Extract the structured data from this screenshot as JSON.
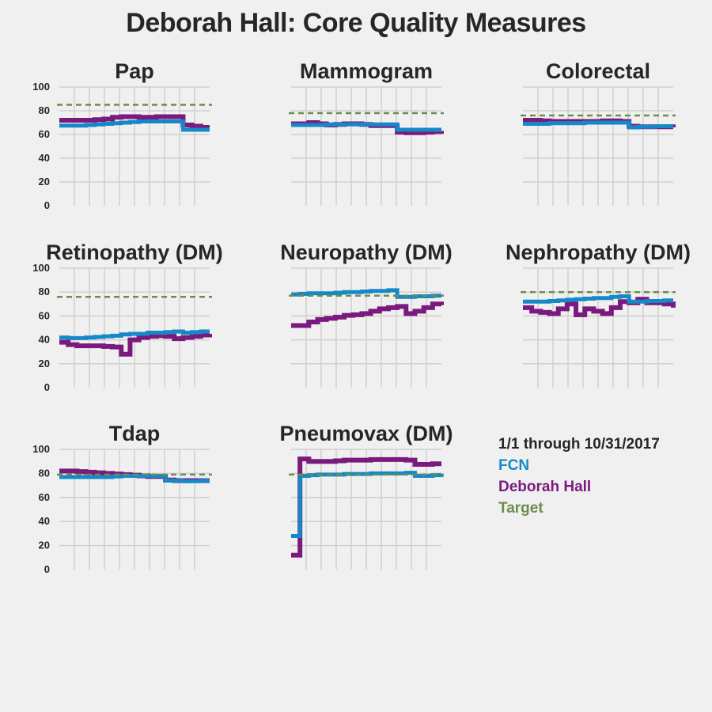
{
  "title": "Deborah Hall: Core Quality Measures",
  "legend": {
    "period": "1/1 through 10/31/2017",
    "items": [
      {
        "label": "FCN",
        "color": "#1589c8"
      },
      {
        "label": "Deborah Hall",
        "color": "#7a1a7e"
      },
      {
        "label": "Target",
        "color": "#6b8e4e"
      }
    ]
  },
  "chart_data": [
    {
      "type": "line",
      "title": "Pap",
      "ylim": [
        0,
        100
      ],
      "yticks": [
        "100",
        "80",
        "60",
        "40",
        "20",
        "0"
      ],
      "grid": true,
      "target": 85,
      "series": [
        {
          "name": "FCN",
          "values": [
            67.5,
            67.5,
            67.5,
            68,
            68.5,
            69,
            69.5,
            70,
            70.5,
            71,
            71,
            71,
            71,
            71,
            64,
            64,
            64,
            64
          ]
        },
        {
          "name": "Deborah Hall",
          "values": [
            72,
            72,
            72,
            72,
            72.5,
            73,
            74.5,
            75,
            75,
            74.5,
            74.5,
            75,
            75,
            75,
            68,
            67,
            66,
            66
          ]
        }
      ]
    },
    {
      "type": "line",
      "title": "Mammogram",
      "ylim": [
        0,
        100
      ],
      "yticks": [
        "100",
        "80",
        "60",
        "40",
        "20",
        "0"
      ],
      "grid": true,
      "target": 78,
      "series": [
        {
          "name": "FCN",
          "values": [
            68,
            68,
            68,
            68,
            68.5,
            68.5,
            68.5,
            68.5,
            68.5,
            68.5,
            68.5,
            68.5,
            64,
            64,
            64,
            64,
            64,
            64
          ]
        },
        {
          "name": "Deborah Hall",
          "values": [
            69,
            69,
            70,
            69,
            68,
            68.5,
            69,
            69,
            68.5,
            67.5,
            67.5,
            67.5,
            62,
            61.5,
            61.5,
            62,
            62.5,
            63
          ]
        }
      ]
    },
    {
      "type": "line",
      "title": "Colorectal",
      "ylim": [
        0,
        100
      ],
      "yticks": [
        "100",
        "80",
        "60",
        "40",
        "20",
        "0"
      ],
      "grid": true,
      "target": 76,
      "series": [
        {
          "name": "FCN",
          "values": [
            69,
            69,
            69,
            69.5,
            69.5,
            69.5,
            69.5,
            70,
            70,
            70,
            70,
            70,
            66,
            66.5,
            66.5,
            67,
            67,
            67
          ]
        },
        {
          "name": "Deborah Hall",
          "values": [
            72,
            72,
            71.5,
            71,
            71,
            71,
            71,
            71,
            71,
            71.5,
            71.5,
            71,
            67,
            66.5,
            66.5,
            66.5,
            66.5,
            66
          ]
        }
      ]
    },
    {
      "type": "line",
      "title": "Retinopathy (DM)",
      "ylim": [
        0,
        100
      ],
      "yticks": [
        "100",
        "80",
        "60",
        "40",
        "20",
        "0"
      ],
      "grid": true,
      "target": 76,
      "series": [
        {
          "name": "FCN",
          "values": [
            42,
            41.5,
            41.5,
            42,
            42.5,
            43,
            43.5,
            44.5,
            45,
            45,
            46,
            46,
            46.5,
            47,
            46,
            46.5,
            47,
            47
          ]
        },
        {
          "name": "Deborah Hall",
          "values": [
            38,
            36,
            35,
            35,
            35,
            34.5,
            34,
            28,
            40,
            42,
            43,
            43.5,
            43,
            41,
            42,
            43,
            44,
            45
          ]
        }
      ]
    },
    {
      "type": "line",
      "title": "Neuropathy (DM)",
      "ylim": [
        0,
        100
      ],
      "yticks": [
        "100",
        "80",
        "60",
        "40",
        "20",
        "0"
      ],
      "grid": true,
      "target": 77,
      "series": [
        {
          "name": "FCN",
          "values": [
            78,
            78.5,
            79,
            79,
            79,
            79.5,
            80,
            80,
            80.5,
            81,
            81,
            81.5,
            76,
            76,
            76.5,
            76.5,
            77,
            77
          ]
        },
        {
          "name": "Deborah Hall",
          "values": [
            52,
            52,
            55,
            57,
            58,
            59,
            60.5,
            61,
            62,
            64,
            66,
            67,
            68,
            62,
            64,
            67,
            70,
            69
          ]
        }
      ]
    },
    {
      "type": "line",
      "title": "Nephropathy (DM)",
      "ylim": [
        0,
        100
      ],
      "yticks": [
        "100",
        "80",
        "60",
        "40",
        "20",
        "0"
      ],
      "grid": true,
      "target": 80,
      "series": [
        {
          "name": "FCN",
          "values": [
            72,
            72,
            72,
            72.5,
            73,
            73.5,
            74,
            74.5,
            75,
            75,
            76,
            76.5,
            72,
            72,
            72.5,
            72.5,
            73,
            73
          ]
        },
        {
          "name": "Deborah Hall",
          "values": [
            67,
            64,
            63,
            62,
            66,
            70,
            61,
            66,
            64,
            62,
            67,
            72,
            71,
            74,
            71,
            71,
            70,
            67
          ]
        }
      ]
    },
    {
      "type": "line",
      "title": "Tdap",
      "ylim": [
        0,
        100
      ],
      "yticks": [
        "100",
        "80",
        "60",
        "40",
        "20",
        "0"
      ],
      "grid": true,
      "target": 79,
      "series": [
        {
          "name": "FCN",
          "values": [
            77,
            77,
            77,
            77,
            77,
            77,
            77.5,
            78,
            78,
            78,
            78,
            78,
            74,
            74,
            73.5,
            73.5,
            74,
            74
          ]
        },
        {
          "name": "Deborah Hall",
          "values": [
            82,
            82,
            81.5,
            81,
            80.5,
            80,
            79.5,
            79,
            78.5,
            78,
            77.5,
            77.5,
            74.5,
            74,
            74,
            74,
            74,
            74
          ]
        }
      ]
    },
    {
      "type": "line",
      "title": "Pneumovax (DM)",
      "ylim": [
        0,
        100
      ],
      "yticks": [
        "100",
        "80",
        "60",
        "40",
        "20",
        "0"
      ],
      "grid": true,
      "target": 79,
      "series": [
        {
          "name": "FCN",
          "values": [
            28,
            78,
            78.5,
            79,
            79,
            79,
            79.5,
            79.5,
            79.5,
            80,
            80,
            80,
            80,
            80.5,
            78,
            78,
            78.5,
            79
          ]
        },
        {
          "name": "Deborah Hall",
          "values": [
            12,
            92,
            90,
            90,
            90,
            90.5,
            91,
            91,
            91,
            91.5,
            91.5,
            91.5,
            91.5,
            91,
            87.5,
            87.5,
            88,
            88
          ]
        }
      ]
    }
  ]
}
